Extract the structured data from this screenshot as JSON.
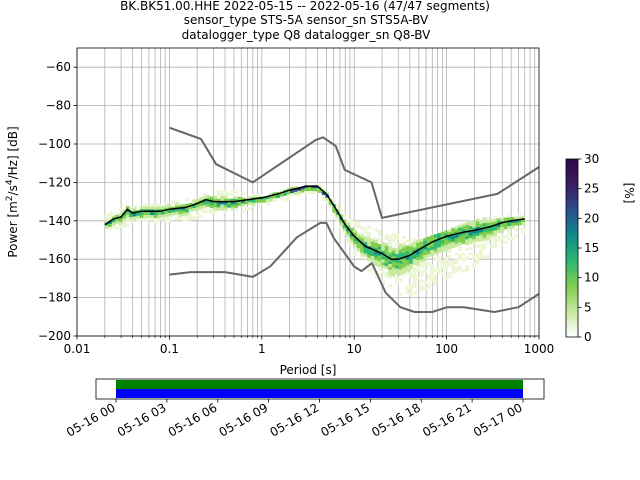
{
  "title_lines": [
    "BK.BK51.00.HHE   2022-05-15 -- 2022-05-16  (47/47 segments)",
    "sensor_type STS-5A sensor_sn STS5A-BV",
    "datalogger_type Q8 datalogger_sn Q8-BV"
  ],
  "chart_data": {
    "type": "line",
    "xscale": "log",
    "xlim": [
      0.01,
      1000
    ],
    "ylim": [
      -200,
      -50
    ],
    "xlabel": "Period [s]",
    "ylabel": "Power [m²/s⁴/Hz] [dB]",
    "xticks": [
      {
        "value": 0.01,
        "label": "0.01"
      },
      {
        "value": 0.1,
        "label": "0.1"
      },
      {
        "value": 1,
        "label": "1"
      },
      {
        "value": 10,
        "label": "10"
      },
      {
        "value": 100,
        "label": "100"
      },
      {
        "value": 1000,
        "label": "1000"
      }
    ],
    "yticks": [
      -60,
      -80,
      -100,
      -120,
      -140,
      -160,
      -180,
      -200
    ],
    "grid": true,
    "series": [
      {
        "role": "noise_model_high",
        "color": "#666666",
        "x": [
          0.1,
          0.22,
          0.32,
          0.8,
          3.8,
          4.6,
          6.3,
          7.9,
          15.4,
          20,
          354.8,
          1000
        ],
        "y": [
          -91.5,
          -97.4,
          -110.5,
          -120,
          -98,
          -96.5,
          -101,
          -113.5,
          -120,
          -138.5,
          -126,
          -112
        ]
      },
      {
        "role": "noise_model_low",
        "color": "#666666",
        "x": [
          0.1,
          0.17,
          0.4,
          0.8,
          1.24,
          2.4,
          4.3,
          5,
          6,
          10,
          12,
          15.6,
          21.9,
          31.6,
          45,
          70,
          101,
          154,
          328,
          600,
          1000
        ],
        "y": [
          -168,
          -166.7,
          -166.7,
          -169.2,
          -163.7,
          -148.6,
          -141.1,
          -141.1,
          -149,
          -163.8,
          -166.2,
          -162.1,
          -177.5,
          -185,
          -187.5,
          -187.5,
          -185,
          -185,
          -187.5,
          -185,
          -178
        ]
      },
      {
        "role": "mode",
        "color": "#000000",
        "x": [
          0.02,
          0.025,
          0.03,
          0.035,
          0.04,
          0.05,
          0.06,
          0.08,
          0.1,
          0.15,
          0.2,
          0.25,
          0.3,
          0.4,
          0.5,
          0.7,
          1,
          1.5,
          2,
          3,
          4,
          5,
          6,
          8,
          10,
          13,
          16,
          20,
          25,
          30,
          40,
          50,
          70,
          100,
          150,
          200,
          300,
          400,
          500,
          700
        ],
        "y": [
          -142,
          -139,
          -138,
          -134,
          -136,
          -135,
          -135,
          -135,
          -134,
          -133,
          -131,
          -129,
          -130,
          -130,
          -130,
          -129,
          -128,
          -126,
          -124,
          -122,
          -122,
          -126,
          -132,
          -142,
          -148,
          -153,
          -155,
          -157,
          -160,
          -160,
          -158,
          -155,
          -151,
          -148,
          -146,
          -145,
          -143,
          -141,
          -140,
          -139
        ]
      }
    ],
    "density_band": {
      "x": [
        0.02,
        0.03,
        0.05,
        0.08,
        0.1,
        0.2,
        0.3,
        0.5,
        0.8,
        1,
        1.5,
        2,
        3,
        4,
        5,
        6,
        8,
        10,
        15,
        20,
        30,
        50,
        100,
        200,
        400,
        700
      ],
      "upper": [
        -137,
        -133,
        -131,
        -131,
        -130,
        -127,
        -124,
        -124,
        -126,
        -126,
        -125,
        -123,
        -120,
        -120,
        -123,
        -128,
        -137,
        -140,
        -143,
        -145,
        -147,
        -150,
        -145,
        -139,
        -137,
        -136
      ],
      "lower": [
        -145,
        -143,
        -141,
        -141,
        -140,
        -138,
        -136,
        -135,
        -133,
        -132,
        -129,
        -128,
        -125,
        -125,
        -130,
        -138,
        -150,
        -158,
        -166,
        -172,
        -178,
        -177,
        -170,
        -163,
        -152,
        -145
      ]
    },
    "colorbar": {
      "label": "[%]",
      "min": 0,
      "max": 30,
      "ticks": [
        0,
        5,
        10,
        15,
        20,
        25,
        30
      ],
      "colors": [
        "#ffffff",
        "#c7e9a0",
        "#7fcd4f",
        "#2eb872",
        "#0f8a8a",
        "#2a4f8f",
        "#3d1b63",
        "#2c0a47"
      ]
    }
  },
  "timeline": {
    "tick_labels": [
      "05-16 00",
      "05-16 03",
      "05-16 06",
      "05-16 09",
      "05-16 12",
      "05-16 15",
      "05-16 18",
      "05-16 21",
      "05-17 00"
    ],
    "bar_colors": {
      "top": "#008000",
      "bottom": "#0000ff"
    }
  }
}
